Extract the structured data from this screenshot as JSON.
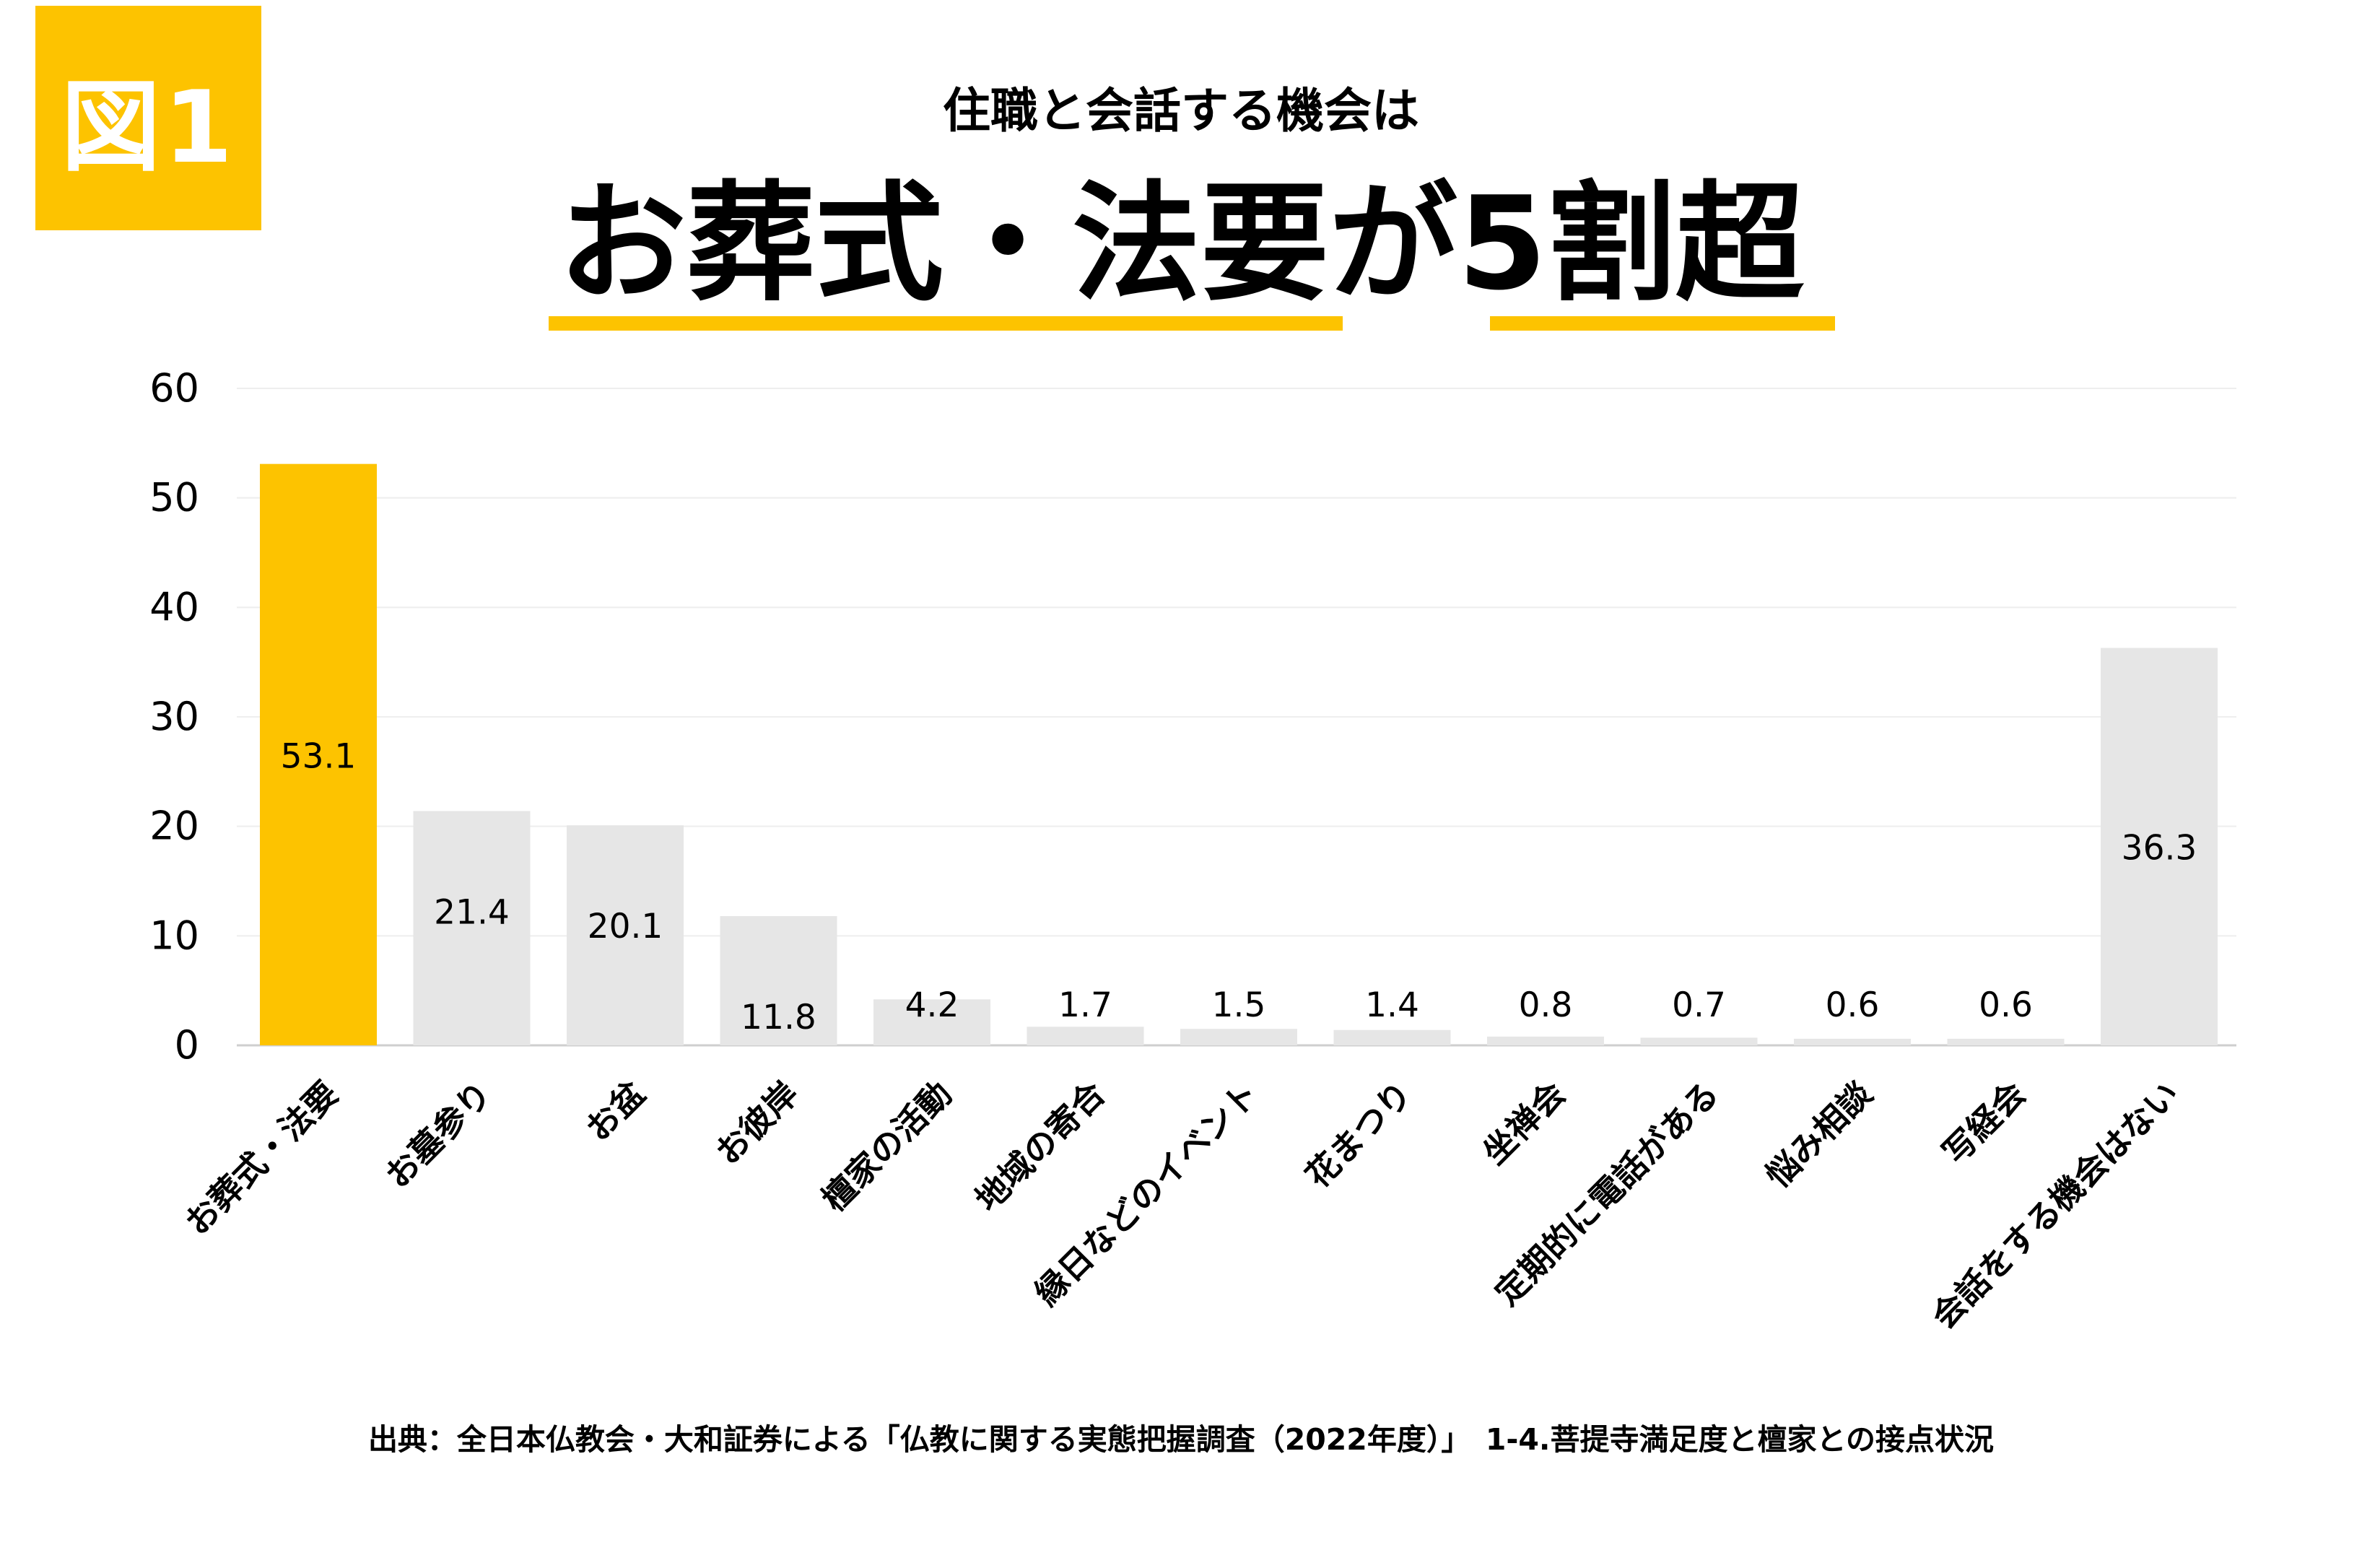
{
  "badge": "図1",
  "subtitle": "住職と会話する機会は",
  "headline": "お葬式・法要が5割超",
  "accent_color": "#FDC300",
  "neutral_bar_color": "#E6E6E6",
  "source": "出典：全日本仏教会・大和証券による「仏教に関する実態把握調査（2022年度）」　1-4.菩提寺満足度と檀家との接点状況",
  "chart_data": {
    "type": "bar",
    "title": "",
    "xlabel": "",
    "ylabel": "",
    "ylim": [
      0,
      60
    ],
    "yticks": [
      0,
      10,
      20,
      30,
      40,
      50,
      60
    ],
    "grid": true,
    "categories": [
      "お葬式・法要",
      "お墓参り",
      "お盆",
      "お彼岸",
      "檀家の活動",
      "地域の寄合",
      "縁日などのイベント",
      "花まつり",
      "坐禅会",
      "定期的に電話がある",
      "悩み相談",
      "写経会",
      "会話をする機会はない"
    ],
    "values": [
      53.1,
      21.4,
      20.1,
      11.8,
      4.2,
      1.7,
      1.5,
      1.4,
      0.8,
      0.7,
      0.6,
      0.6,
      36.3
    ],
    "value_labels": [
      "53.1",
      "21.4",
      "20.1",
      "11.8",
      "4.2",
      "1.7",
      "1.5",
      "1.4",
      "0.8",
      "0.7",
      "0.6",
      "0.6",
      "36.3"
    ],
    "highlight_index": 0
  }
}
